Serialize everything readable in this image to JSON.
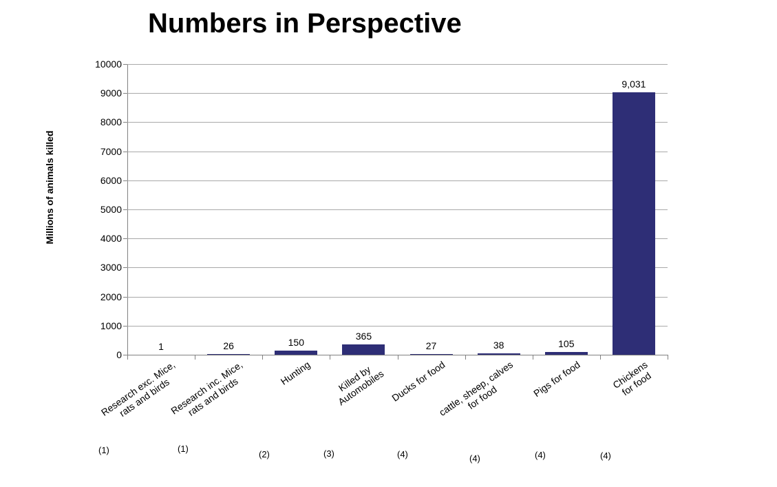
{
  "chart_data": {
    "type": "bar",
    "title": "Numbers in Perspective",
    "ylabel": "Millions of animals killed",
    "xlabel": "",
    "ylim": [
      0,
      10000
    ],
    "ytick_step": 1000,
    "grid": true,
    "legend": false,
    "bar_color": "#2E2E76",
    "axis_color": "#808080",
    "gridline_color": "#A8A8A8",
    "categories": [
      "Research exc. Mice,\nrats and birds",
      "Research inc. Mice,\nrats and birds",
      "Hunting",
      "Killed by\nAutomobiles",
      "Ducks for food",
      "cattle, sheep, calves\nfor food",
      "Pigs for food",
      "Chickens\nfor food"
    ],
    "values": [
      1,
      26,
      150,
      365,
      27,
      38,
      105,
      9031
    ],
    "value_labels": [
      "1",
      "26",
      "150",
      "365",
      "27",
      "38",
      "105",
      "9,031"
    ],
    "footnotes": [
      "(1)",
      "(1)",
      "(2)",
      "(3)",
      "(4)",
      "(4)",
      "(4)",
      "(4)"
    ]
  }
}
